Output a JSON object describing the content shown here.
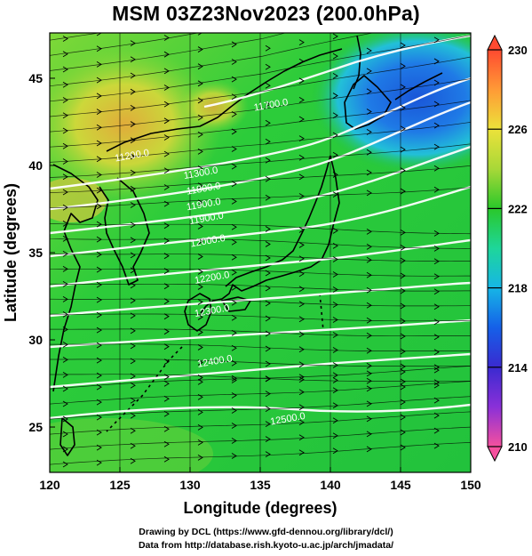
{
  "title": "MSM 03Z23Nov2023 (200.0hPa)",
  "map": {
    "x_axis": {
      "label": "Longitude (degrees)",
      "range": [
        120,
        150
      ],
      "ticks": [
        120,
        125,
        130,
        135,
        140,
        145,
        150
      ],
      "tick_labels": [
        "120",
        "125",
        "130",
        "135",
        "140",
        "145",
        "150"
      ]
    },
    "y_axis": {
      "label": "Latitude  (degrees)",
      "range": [
        22.4,
        47.6
      ],
      "ticks": [
        25,
        30,
        35,
        40,
        45
      ],
      "tick_labels": [
        "25",
        "30",
        "35",
        "40",
        "45"
      ]
    },
    "gridlines": true,
    "field": "temperature shading with wind streamline vectors and geopotential height contours",
    "contour_labels": [
      {
        "text": "11200.0",
        "lon": 125.9,
        "lat": 40.4
      },
      {
        "text": "11300.0",
        "lon": 130.8,
        "lat": 39.4
      },
      {
        "text": "11800.0",
        "lon": 131.0,
        "lat": 38.5
      },
      {
        "text": "11900.0",
        "lon": 131.0,
        "lat": 37.6
      },
      {
        "text": "11900.0",
        "lon": 131.2,
        "lat": 36.8
      },
      {
        "text": "12000.0",
        "lon": 131.3,
        "lat": 35.5
      },
      {
        "text": "12200.0",
        "lon": 131.6,
        "lat": 33.4
      },
      {
        "text": "12300.0",
        "lon": 131.6,
        "lat": 31.5
      },
      {
        "text": "12400.0",
        "lon": 131.8,
        "lat": 28.6
      },
      {
        "text": "12500.0",
        "lon": 137.0,
        "lat": 25.3
      },
      {
        "text": "11700.0",
        "lon": 135.8,
        "lat": 43.3
      }
    ]
  },
  "colorbar": {
    "min": 210,
    "max": 230,
    "tick_labels": [
      "230",
      "226",
      "222",
      "218",
      "214",
      "210"
    ],
    "tick_values": [
      230,
      226,
      222,
      218,
      214,
      210
    ],
    "colors": [
      "#f5509e",
      "#d63ad6",
      "#4a2ac8",
      "#1560e8",
      "#16b6e6",
      "#1ed69a",
      "#2ac82a",
      "#a8d838",
      "#ece23a",
      "#ff9a36",
      "#ff4a30"
    ]
  },
  "footer": {
    "line1": "Drawing by DCL (https://www.gfd-dennou.org/library/dcl/)",
    "line2": "Data from http://database.rish.kyoto-u.ac.jp/arch/jmadata/"
  }
}
